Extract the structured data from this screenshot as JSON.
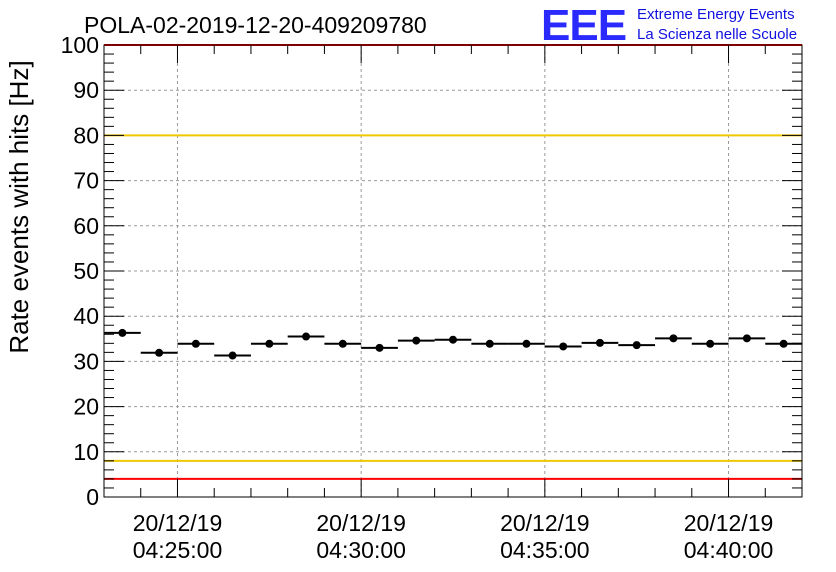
{
  "logo": {
    "letters": "EEE",
    "line1": "Extreme Energy Events",
    "line2": "La Scienza nelle Scuole"
  },
  "chart_data": {
    "type": "scatter",
    "title": "POLA-02-2019-12-20-409209780",
    "xlabel": "",
    "ylabel": "Rate events with hits [Hz]",
    "ylim": [
      0,
      100
    ],
    "yticks": [
      0,
      10,
      20,
      30,
      40,
      50,
      60,
      70,
      80,
      90,
      100
    ],
    "xlim": [
      "2019-12-20 04:23:00",
      "2019-12-20 04:42:00"
    ],
    "xticks": [
      {
        "value": "2019-12-20 04:25:00",
        "date": "20/12/19",
        "time": "04:25:00"
      },
      {
        "value": "2019-12-20 04:30:00",
        "date": "20/12/19",
        "time": "04:30:00"
      },
      {
        "value": "2019-12-20 04:35:00",
        "date": "20/12/19",
        "time": "04:35:00"
      },
      {
        "value": "2019-12-20 04:40:00",
        "date": "20/12/19",
        "time": "04:40:00"
      }
    ],
    "bin_width_seconds": 60,
    "grid": true,
    "x": [
      "04:23:30",
      "04:24:30",
      "04:25:30",
      "04:26:30",
      "04:27:30",
      "04:28:30",
      "04:29:30",
      "04:30:30",
      "04:31:30",
      "04:32:30",
      "04:33:30",
      "04:34:30",
      "04:35:30",
      "04:36:30",
      "04:37:30",
      "04:38:30",
      "04:39:30",
      "04:40:30",
      "04:41:30"
    ],
    "values": [
      36.3,
      31.9,
      33.9,
      31.3,
      33.9,
      35.5,
      33.9,
      33.0,
      34.6,
      34.8,
      33.9,
      33.9,
      33.3,
      34.1,
      33.6,
      35.1,
      33.9,
      35.1,
      33.9
    ],
    "reference_lines": [
      {
        "y": 80,
        "color": "#f0c800"
      },
      {
        "y": 8,
        "color": "#f0c800"
      },
      {
        "y": 100,
        "color": "#ff0000"
      },
      {
        "y": 4,
        "color": "#ff0000"
      }
    ],
    "marker_color": "#000000"
  }
}
